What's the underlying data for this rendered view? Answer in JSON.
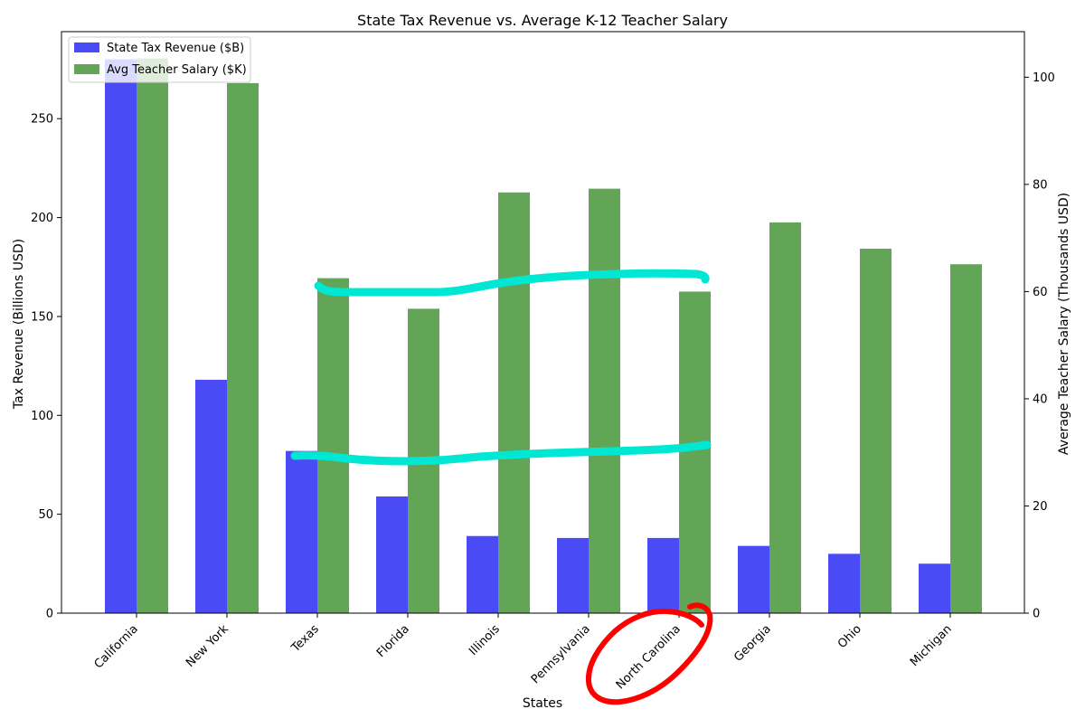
{
  "chart_data": {
    "type": "bar",
    "title": "State Tax Revenue vs. Average K-12 Teacher Salary",
    "xlabel": "States",
    "ylabel_left": "Tax Revenue (Billions USD)",
    "ylabel_right": "Average Teacher Salary (Thousands USD)",
    "categories": [
      "California",
      "New York",
      "Texas",
      "Florida",
      "Illinois",
      "Pennsylvania",
      "North Carolina",
      "Georgia",
      "Ohio",
      "Michigan"
    ],
    "series": [
      {
        "name": "State Tax Revenue ($B)",
        "axis": "left",
        "color": "#4b4bf5",
        "values": [
          280,
          118,
          82,
          59,
          39,
          38,
          38,
          34,
          30,
          25
        ]
      },
      {
        "name": "Avg Teacher Salary ($K)",
        "axis": "right",
        "color": "#63a556",
        "values": [
          103.5,
          98.9,
          62.5,
          56.8,
          78.5,
          79.2,
          60.0,
          72.9,
          68.0,
          65.1
        ]
      }
    ],
    "ylim_left": [
      0,
      294
    ],
    "yticks_left": [
      0,
      50,
      100,
      150,
      200,
      250
    ],
    "ylim_right": [
      0,
      108.5
    ],
    "yticks_right": [
      0,
      20,
      40,
      60,
      80,
      100
    ],
    "legend_position": "upper-left",
    "grid": false
  },
  "annotations": {
    "highlight_lines_color": "#00e8d4",
    "circle_color": "#ff0000"
  }
}
